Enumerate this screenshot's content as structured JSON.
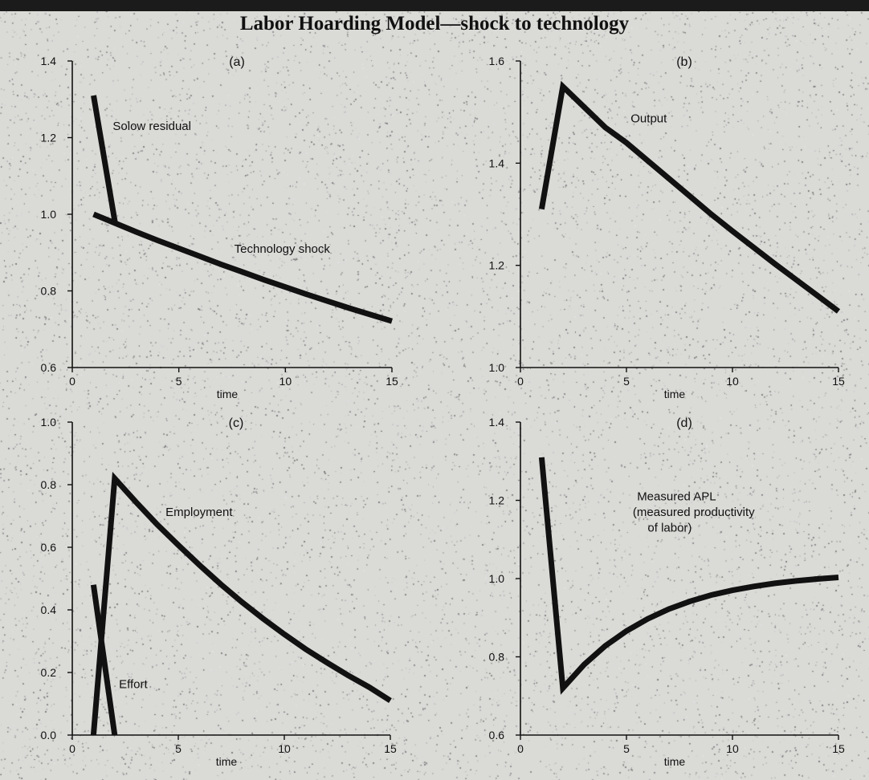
{
  "title": "Labor Hoarding Model—shock to technology",
  "chart_data": [
    {
      "type": "line",
      "panel_label": "(a)",
      "xlabel": "time",
      "xlim": [
        0,
        15
      ],
      "ylim": [
        0.6,
        1.4
      ],
      "xticks": [
        "0",
        "5",
        "10",
        "15"
      ],
      "yticks": [
        "0.6",
        "0.8",
        "1.0",
        "1.2",
        "1.4"
      ],
      "series": [
        {
          "name": "Solow residual",
          "x": [
            1,
            2
          ],
          "y": [
            1.31,
            0.98
          ]
        },
        {
          "name": "Technology shock",
          "x": [
            1,
            2,
            3,
            4,
            5,
            6,
            7,
            8,
            9,
            10,
            11,
            12,
            13,
            14,
            15
          ],
          "y": [
            1.0,
            0.977,
            0.954,
            0.932,
            0.911,
            0.89,
            0.869,
            0.849,
            0.829,
            0.81,
            0.791,
            0.773,
            0.755,
            0.738,
            0.721
          ]
        }
      ],
      "annotations": [
        {
          "text": "Solow residual",
          "x": 1.9,
          "y": 1.22
        },
        {
          "text": "Technology shock",
          "x": 7.6,
          "y": 0.9
        }
      ]
    },
    {
      "type": "line",
      "panel_label": "(b)",
      "xlabel": "time",
      "xlim": [
        0,
        15
      ],
      "ylim": [
        1.0,
        1.6
      ],
      "xticks": [
        "0",
        "5",
        "10",
        "15"
      ],
      "yticks": [
        "1.0",
        "1.2",
        "1.4",
        "1.6"
      ],
      "series": [
        {
          "name": "Output",
          "x": [
            1,
            2,
            3,
            4,
            5,
            6,
            7,
            8,
            9,
            10,
            11,
            12,
            13,
            14,
            15
          ],
          "y": [
            1.31,
            1.55,
            1.51,
            1.47,
            1.44,
            1.405,
            1.37,
            1.335,
            1.3,
            1.267,
            1.235,
            1.203,
            1.172,
            1.141,
            1.11
          ]
        }
      ],
      "annotations": [
        {
          "text": "Output",
          "x": 5.2,
          "y": 1.48
        }
      ]
    },
    {
      "type": "line",
      "panel_label": "(c)",
      "xlabel": "time",
      "xlim": [
        0,
        15
      ],
      "ylim": [
        0.0,
        1.0
      ],
      "xticks": [
        "0",
        "5",
        "10",
        "15"
      ],
      "yticks": [
        "0.0",
        "0.2",
        "0.4",
        "0.6",
        "0.8",
        "1.0"
      ],
      "series": [
        {
          "name": "Employment",
          "x": [
            1,
            2,
            3,
            4,
            5,
            6,
            7,
            8,
            9,
            10,
            11,
            12,
            13,
            14,
            15
          ],
          "y": [
            0.0,
            0.82,
            0.745,
            0.673,
            0.607,
            0.543,
            0.482,
            0.425,
            0.372,
            0.322,
            0.275,
            0.232,
            0.191,
            0.153,
            0.11
          ]
        },
        {
          "name": "Effort",
          "x": [
            1,
            2
          ],
          "y": [
            0.48,
            0.0
          ]
        }
      ],
      "annotations": [
        {
          "text": "Employment",
          "x": 4.4,
          "y": 0.7
        },
        {
          "text": "Effort",
          "x": 2.2,
          "y": 0.15
        }
      ]
    },
    {
      "type": "line",
      "panel_label": "(d)",
      "xlabel": "time",
      "xlim": [
        0,
        15
      ],
      "ylim": [
        0.6,
        1.4
      ],
      "xticks": [
        "0",
        "5",
        "10",
        "15"
      ],
      "yticks": [
        "0.6",
        "0.8",
        "1.0",
        "1.2",
        "1.4"
      ],
      "series": [
        {
          "name": "Measured APL (measured productivity of labor)",
          "x": [
            1,
            2,
            3,
            4,
            5,
            6,
            7,
            8,
            9,
            10,
            11,
            12,
            13,
            14,
            15
          ],
          "y": [
            1.31,
            0.72,
            0.78,
            0.828,
            0.866,
            0.897,
            0.922,
            0.942,
            0.958,
            0.97,
            0.98,
            0.988,
            0.994,
            0.999,
            1.003
          ]
        }
      ],
      "annotations": [
        {
          "text": "Measured APL",
          "x": 5.5,
          "y": 1.2
        },
        {
          "text": "(measured productivity",
          "x": 5.3,
          "y": 1.16
        },
        {
          "text": "of labor)",
          "x": 6.0,
          "y": 1.12
        }
      ]
    }
  ]
}
